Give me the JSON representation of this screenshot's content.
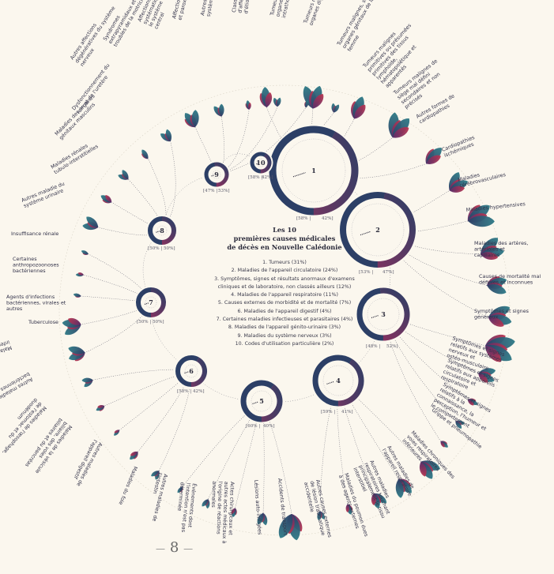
{
  "title_lines": [
    "Les 10",
    "premières causes médicales",
    "de décès en Nouvelle Calédonie"
  ],
  "legend": [
    "1. Tumeurs (31%)",
    "2. Maladies de l'appareil circulatoire (24%)",
    "3. Symptômes, signes et résultats anormaux d'examens cliniques et de laboratoire, non classés ailleurs (12%)",
    "4. Maladies de l'appareil respiratoire (11%)",
    "5. Causes externes de morbidité et de mortalité (7%)",
    "6. Maladies de l'appareil digestif (4%)",
    "7. Certaines maladies infectieuses et parasitaires (4%)",
    "8. Maladies de l'appareil génito-urinaire (3%)",
    "9. Maladies du système nerveux (3%)",
    "10. Codes d'utilisation particulière (2%)"
  ],
  "page_number": "8",
  "colors": {
    "dark": "#2c3f66",
    "teal": "#2d6f7a",
    "magenta": "#a0325e",
    "crimson": "#b8344f",
    "purple": "#6a3a7a",
    "background": "#fbf7ee"
  },
  "categories": [
    {
      "num": "1",
      "split": [
        "58%",
        "42%"
      ]
    },
    {
      "num": "2",
      "split": [
        "53%",
        "47%"
      ]
    },
    {
      "num": "3",
      "split": [
        "48%",
        "52%"
      ]
    },
    {
      "num": "4",
      "split": [
        "59%",
        "41%"
      ]
    },
    {
      "num": "5",
      "split": [
        "60%",
        "40%"
      ]
    },
    {
      "num": "6",
      "split": [
        "58%",
        "42%"
      ]
    },
    {
      "num": "7",
      "split": [
        "50%",
        "50%"
      ]
    },
    {
      "num": "8",
      "split": [
        "50%",
        "50%"
      ]
    },
    {
      "num": "9",
      "split": [
        "47%",
        "53%"
      ]
    },
    {
      "num": "10",
      "split": [
        "58%",
        "42%"
      ]
    }
  ],
  "subcauses": [
    "Tumeurs malignes, organes respiratoires et intrathoraciques",
    "Tumeurs malignes, organes digestifs",
    "Tumeurs malignes, seins organes génitaux de la femme",
    "Tumeurs malignes primitives ou présumées primitives des tissus lymphoïde, hématopoïétique et apparentés",
    "Tumeurs malignes de siège mal défini secondaires et non précisés",
    "Autres formes de cardiopathies",
    "Cardiopathies ischémiques",
    "Maladies cérébrovasculaires",
    "Maladies hypertensives",
    "Maladies des artères, artérioles et capillaires",
    "Causes de mortalité mal définies et inconnues",
    "Symptômes et signes généraux",
    "Symptômes et signes relatifs aux systèmes nerveux et ostéo-musculaire",
    "Symptômes et signes relatifs aux appareils circulatoire et respiratoire",
    "Symptômes et signes relatifs à la connaissance, la perception, l'humeur et le comportement",
    "Grippe et pneumopathie",
    "Maladies chroniques des voies respiratoires inférieures",
    "Autres maladies de l'appareil respiratoire",
    "Autres maladies respiratoires touchant principalement le tissu interstitiel",
    "Maladies du poumon dues à des agents externes",
    "Autres causes externes de lésion traumatique accidentelle",
    "Accidents de transport",
    "Lésions auto-infligées",
    "Actes chirurgicaux et autres actes médicaux à l'origine de réactions anormales",
    "Événements dont l'intention n'est pas déterminée",
    "Autres maladies de l'intestin",
    "Maladies du foie",
    "Autres maladies de l'appareil digestif",
    "Maladies de la vésicule biliaire, des voies biliaires et du pancréas",
    "Maladies de l'œsophage, de l'estomac et du duodénum",
    "Autres maladies bactériennes",
    "Maladies intestinales infectieuses",
    "Tuberculose",
    "Agents d'infections bactériennes, virales et autres",
    "Certaines anthropozoonoses bactériennes",
    "Insuffisance rénale",
    "Autres maladie du système urinaire",
    "Maladies rénales tubulo-interstitielles",
    "Maladies des organes génitaux masculins",
    "Dysfonctionnement du rein et de l'uretère",
    "Autres affections dégénératives du système nerveux",
    "Syndromes extrapyramidaux et troubles de la motricité",
    "Affections dégénératives systématiques affectant le système nerveux central",
    "Affections épisodiques et paroxystiques",
    "Autres affections du système nerveux",
    "Classement provisoire d'affections nouvelles d'étiologie incertaine"
  ]
}
